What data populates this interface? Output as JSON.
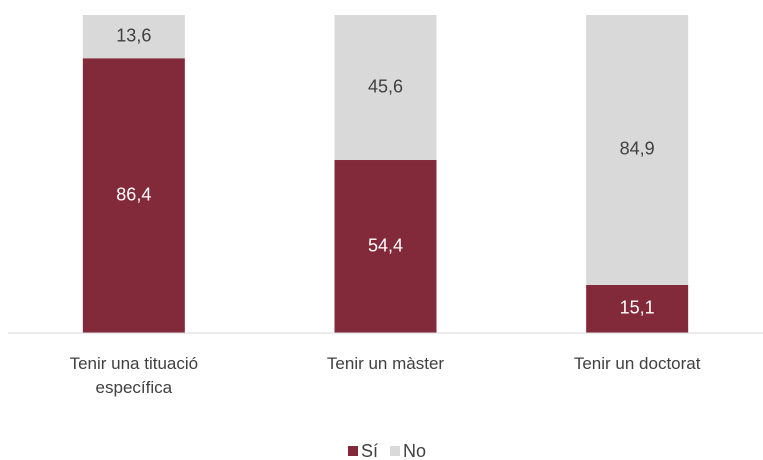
{
  "chart_data": {
    "type": "stacked_bar",
    "categories": [
      "Tenir una tituació específica",
      "Tenir un màster",
      "Tenir un doctorat"
    ],
    "series": [
      {
        "name": "Sí",
        "color": "#832a3a",
        "values": [
          86.4,
          54.4,
          15.1
        ],
        "value_labels": [
          "86,4",
          "54,4",
          "15,1"
        ],
        "label_color": "#ffffff"
      },
      {
        "name": "No",
        "color": "#d9d9d9",
        "values": [
          13.6,
          45.6,
          84.9
        ],
        "value_labels": [
          "13,6",
          "45,6",
          "84,9"
        ],
        "label_color": "#404040"
      }
    ],
    "ylim": [
      0,
      100
    ],
    "legend": "bottom"
  }
}
